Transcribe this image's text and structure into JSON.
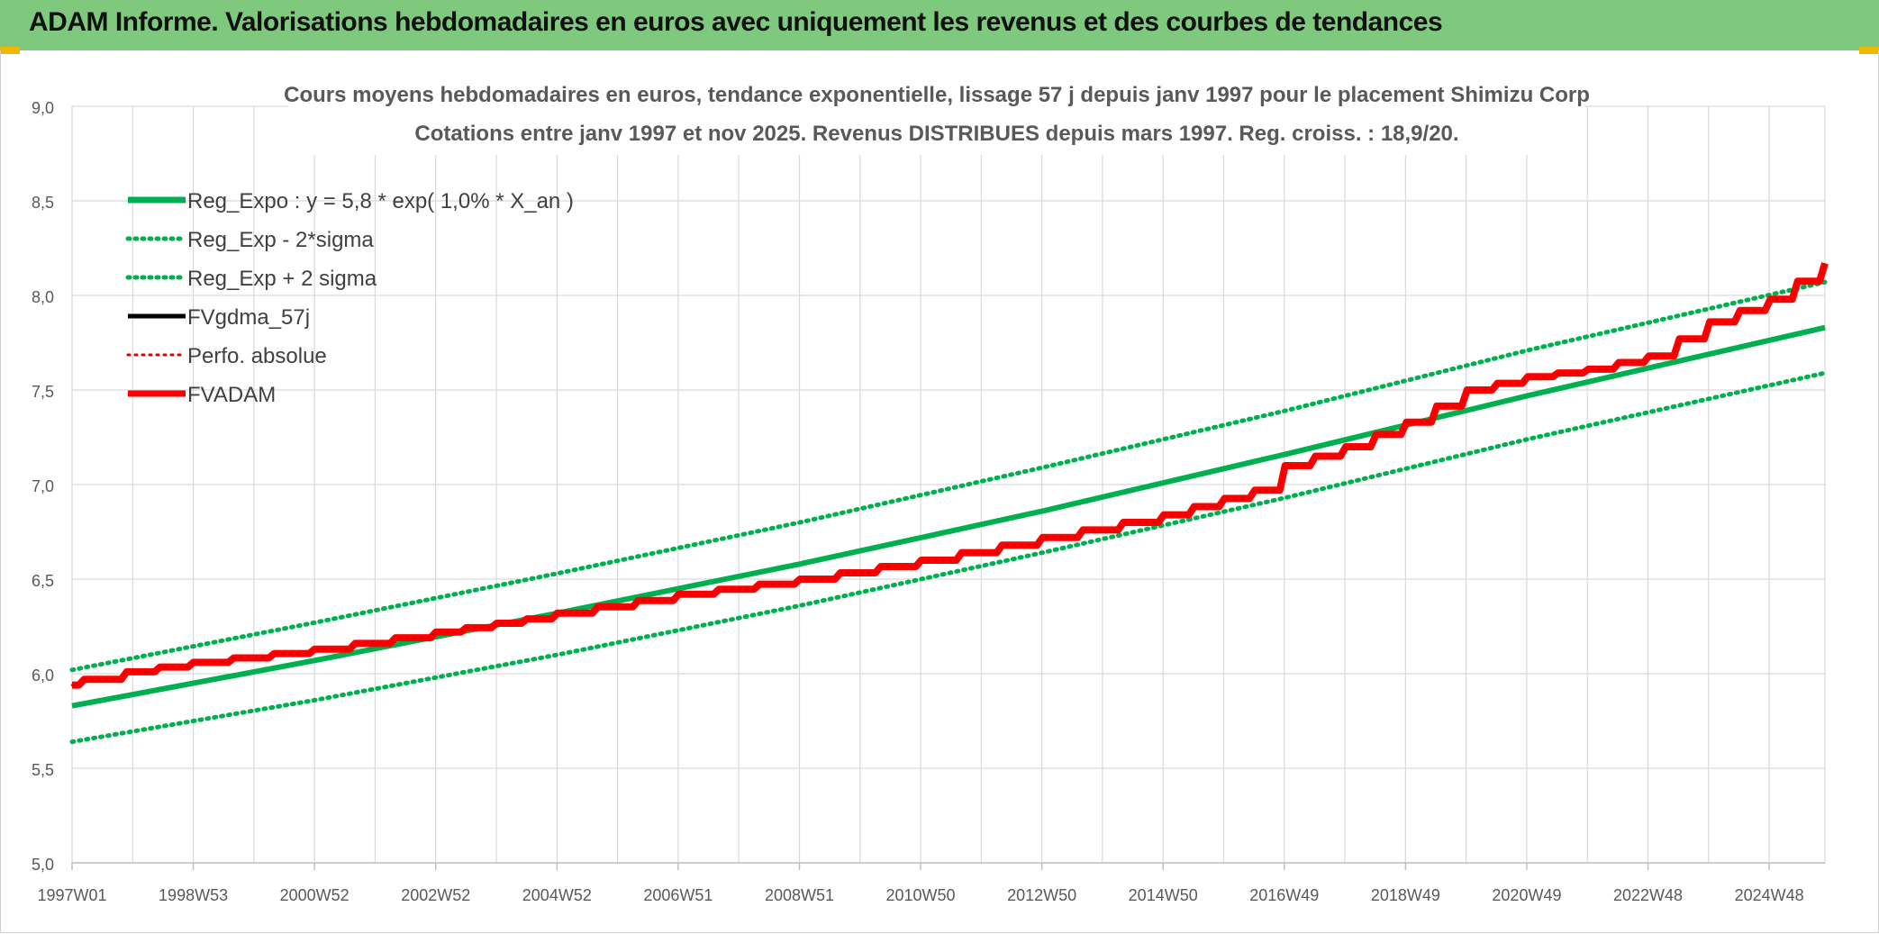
{
  "header": {
    "title": "ADAM Informe. Valorisations hebdomadaires en euros avec uniquement les revenus et des courbes de tendances"
  },
  "chart_data": {
    "type": "line",
    "title": "Cours moyens hebdomadaires en euros, tendance exponentielle, lissage 57 j depuis janv 1997 pour le placement Shimizu Corp",
    "subtitle": "Cotations entre janv 1997 et nov 2025. Revenus DISTRIBUES depuis mars 1997. Reg. croiss. : 18,9/20.",
    "xlabel": "",
    "ylabel": "",
    "ylim": [
      5.0,
      9.0
    ],
    "xlim": [
      1997.0,
      2025.9
    ],
    "y_ticks": [
      "5,0",
      "5,5",
      "6,0",
      "6,5",
      "7,0",
      "7,5",
      "8,0",
      "8,5",
      "9,0"
    ],
    "x_ticks": [
      "1997W01",
      "1998W53",
      "2000W52",
      "2002W52",
      "2004W52",
      "2006W51",
      "2008W51",
      "2010W50",
      "2012W50",
      "2014W50",
      "2016W49",
      "2018W49",
      "2020W49",
      "2022W48",
      "2024W48"
    ],
    "grid": true,
    "legend_position": "top-left",
    "series": [
      {
        "name": "Reg_Expo : y = 5,8 * exp( 1,0% *  X_an )",
        "color": "#00b050",
        "style": "solid",
        "x": [
          1997,
          2001,
          2005,
          2009,
          2013,
          2017,
          2021,
          2025.9
        ],
        "values": [
          5.83,
          6.07,
          6.32,
          6.58,
          6.86,
          7.16,
          7.47,
          7.83
        ]
      },
      {
        "name": "Reg_Exp - 2*sigma",
        "color": "#00b050",
        "style": "dotted",
        "x": [
          1997,
          2001,
          2005,
          2009,
          2013,
          2017,
          2021,
          2025.9
        ],
        "values": [
          5.64,
          5.86,
          6.1,
          6.36,
          6.64,
          6.93,
          7.24,
          7.59
        ]
      },
      {
        "name": "Reg_Exp + 2 sigma",
        "color": "#00b050",
        "style": "dotted",
        "x": [
          1997,
          2001,
          2005,
          2009,
          2013,
          2017,
          2021,
          2025.9
        ],
        "values": [
          6.02,
          6.27,
          6.53,
          6.8,
          7.09,
          7.39,
          7.71,
          8.07
        ]
      },
      {
        "name": "FVgdma_57j",
        "color": "#000000",
        "style": "solid",
        "x": [
          1997,
          1997.2,
          1997.9,
          1999,
          2001,
          2003,
          2004.5,
          2005,
          2007,
          2009,
          2011,
          2013,
          2015,
          2016.5,
          2017,
          2018,
          2019,
          2020,
          2021,
          2022,
          2023,
          2024,
          2025,
          2025.9
        ],
        "values": [
          5.94,
          5.97,
          6.01,
          6.06,
          6.13,
          6.22,
          6.29,
          6.32,
          6.42,
          6.5,
          6.6,
          6.72,
          6.84,
          6.97,
          7.1,
          7.2,
          7.33,
          7.5,
          7.57,
          7.61,
          7.68,
          7.86,
          7.98,
          8.17
        ]
      },
      {
        "name": "Perfo. absolue",
        "color": "#e00000",
        "style": "dotted",
        "x": [
          1997,
          1997.2,
          1997.9,
          1999,
          2001,
          2003,
          2004.5,
          2005,
          2007,
          2009,
          2011,
          2013,
          2015,
          2016.5,
          2017,
          2018,
          2019,
          2020,
          2021,
          2022,
          2023,
          2024,
          2025,
          2025.9
        ],
        "values": [
          5.94,
          5.97,
          6.01,
          6.06,
          6.13,
          6.22,
          6.29,
          6.32,
          6.42,
          6.5,
          6.6,
          6.72,
          6.84,
          6.97,
          7.1,
          7.2,
          7.33,
          7.5,
          7.57,
          7.61,
          7.68,
          7.86,
          7.98,
          8.17
        ]
      },
      {
        "name": "FVADAM",
        "color": "#ff0000",
        "style": "solid",
        "x": [
          1997,
          1997.2,
          1997.9,
          1999,
          2001,
          2003,
          2004.5,
          2005,
          2007,
          2009,
          2011,
          2013,
          2015,
          2016.5,
          2017,
          2018,
          2019,
          2020,
          2021,
          2022,
          2023,
          2024,
          2025,
          2025.9
        ],
        "values": [
          5.94,
          5.97,
          6.01,
          6.06,
          6.13,
          6.22,
          6.29,
          6.32,
          6.42,
          6.5,
          6.6,
          6.72,
          6.84,
          6.97,
          7.1,
          7.2,
          7.33,
          7.5,
          7.57,
          7.61,
          7.68,
          7.86,
          7.98,
          8.17
        ]
      }
    ]
  }
}
